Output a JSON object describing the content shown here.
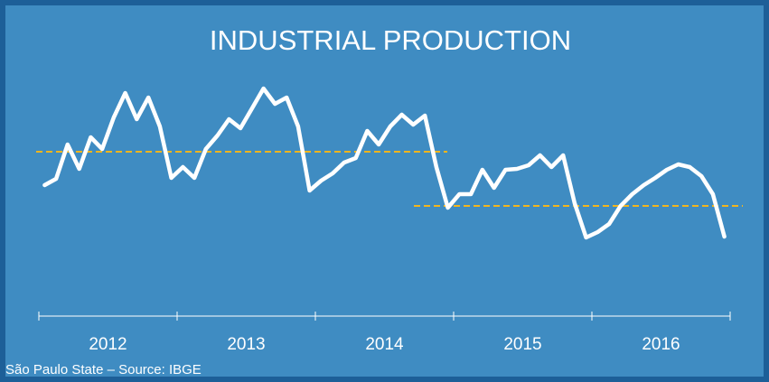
{
  "chart_data": {
    "type": "line",
    "title": "INDUSTRIAL PRODUCTION",
    "footnote": "São Paulo State – Source: IBGE",
    "x": [
      2012.042,
      2012.125,
      2012.208,
      2012.292,
      2012.375,
      2012.458,
      2012.542,
      2012.625,
      2012.708,
      2012.792,
      2012.875,
      2012.958,
      2013.042,
      2013.125,
      2013.208,
      2013.292,
      2013.375,
      2013.458,
      2013.542,
      2013.625,
      2013.708,
      2013.792,
      2013.875,
      2013.958,
      2014.042,
      2014.125,
      2014.208,
      2014.292,
      2014.375,
      2014.458,
      2014.542,
      2014.625,
      2014.708,
      2014.792,
      2014.875,
      2014.958,
      2015.042,
      2015.125,
      2015.208,
      2015.292,
      2015.375,
      2015.458,
      2015.542,
      2015.625,
      2015.708,
      2015.792,
      2015.875,
      2015.958,
      2016.042,
      2016.125,
      2016.208,
      2016.292,
      2016.375,
      2016.458,
      2016.542,
      2016.625,
      2016.708,
      2016.792,
      2016.875,
      2016.958
    ],
    "series": [
      {
        "name": "Industrial production",
        "color": "#ffffff",
        "values": [
          95,
          102,
          140,
          113,
          148,
          135,
          170,
          197,
          168,
          192,
          160,
          103,
          115,
          103,
          135,
          150,
          168,
          158,
          180,
          202,
          185,
          192,
          160,
          89,
          100,
          108,
          120,
          125,
          155,
          140,
          160,
          173,
          162,
          172,
          115,
          70,
          85,
          85,
          112,
          92,
          112,
          113,
          117,
          128,
          115,
          128,
          75,
          37,
          43,
          52,
          72,
          85,
          95,
          103,
          112,
          118,
          115,
          105,
          85,
          38
        ]
      }
    ],
    "reference_lines": [
      {
        "value": 132,
        "color": "#f2b51d"
      },
      {
        "value": 72,
        "color": "#f2b51d"
      }
    ],
    "xlim": [
      2012,
      2017
    ],
    "xticks": [
      2012,
      2013,
      2014,
      2015,
      2016,
      2017
    ],
    "xtick_labels": [
      2012,
      2013,
      2014,
      2015,
      2016
    ],
    "ylim": [
      0,
      300
    ]
  }
}
